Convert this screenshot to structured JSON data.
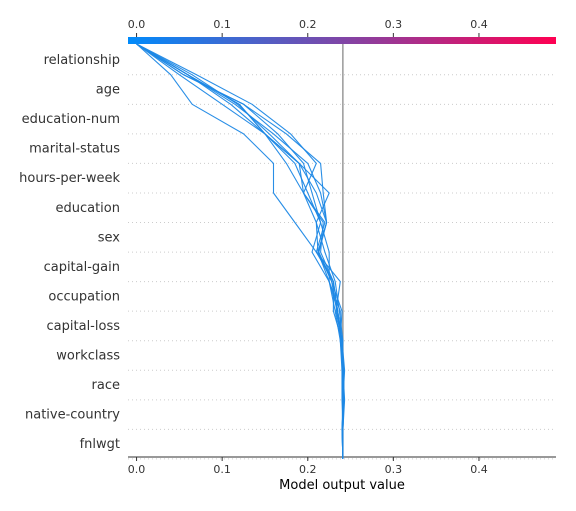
{
  "chart_data": {
    "type": "line",
    "title": "",
    "xlabel": "Model output value",
    "ylabel": "",
    "xlim": [
      -0.01,
      0.49
    ],
    "x_ticks": [
      "0.0",
      "0.1",
      "0.2",
      "0.3",
      "0.4"
    ],
    "x_tick_values": [
      0.0,
      0.1,
      0.2,
      0.3,
      0.4
    ],
    "base_value": 0.0,
    "expected_output": 0.241,
    "colorbar": {
      "from_color": "#008bfb",
      "to_color": "#ff0052"
    },
    "line_color": "#1e88e5",
    "grid": "dotted-horizontal",
    "features": [
      "relationship",
      "age",
      "education-num",
      "marital-status",
      "hours-per-week",
      "education",
      "sex",
      "capital-gain",
      "occupation",
      "capital-loss",
      "workclass",
      "race",
      "native-country",
      "fnlwgt"
    ],
    "series": [
      {
        "values": [
          0.055,
          0.125,
          0.165,
          0.195,
          0.205,
          0.215,
          0.205,
          0.225,
          0.232,
          0.238,
          0.24,
          0.24,
          0.241,
          0.241
        ]
      },
      {
        "values": [
          0.06,
          0.12,
          0.15,
          0.19,
          0.225,
          0.21,
          0.212,
          0.23,
          0.235,
          0.24,
          0.242,
          0.241,
          0.241,
          0.241
        ]
      },
      {
        "values": [
          0.04,
          0.065,
          0.125,
          0.16,
          0.16,
          0.185,
          0.21,
          0.238,
          0.233,
          0.24,
          0.243,
          0.241,
          0.24,
          0.241
        ]
      },
      {
        "values": [
          0.055,
          0.125,
          0.175,
          0.215,
          0.218,
          0.222,
          0.212,
          0.225,
          0.238,
          0.238,
          0.242,
          0.242,
          0.241,
          0.241
        ]
      },
      {
        "values": [
          0.06,
          0.12,
          0.15,
          0.185,
          0.2,
          0.215,
          0.225,
          0.225,
          0.235,
          0.24,
          0.241,
          0.243,
          0.241,
          0.241
        ]
      },
      {
        "values": [
          0.06,
          0.11,
          0.15,
          0.175,
          0.195,
          0.218,
          0.215,
          0.23,
          0.235,
          0.24,
          0.241,
          0.242,
          0.24,
          0.241
        ]
      },
      {
        "values": [
          0.065,
          0.118,
          0.155,
          0.19,
          0.21,
          0.222,
          0.212,
          0.228,
          0.24,
          0.238,
          0.242,
          0.242,
          0.241,
          0.241
        ]
      },
      {
        "values": [
          0.05,
          0.1,
          0.15,
          0.19,
          0.195,
          0.21,
          0.22,
          0.232,
          0.237,
          0.241,
          0.24,
          0.241,
          0.241,
          0.241
        ]
      },
      {
        "values": [
          0.07,
          0.135,
          0.18,
          0.21,
          0.195,
          0.22,
          0.21,
          0.23,
          0.23,
          0.24,
          0.24,
          0.242,
          0.24,
          0.241
        ]
      },
      {
        "values": [
          0.06,
          0.115,
          0.16,
          0.2,
          0.215,
          0.222,
          0.213,
          0.228,
          0.234,
          0.239,
          0.242,
          0.242,
          0.241,
          0.241
        ]
      }
    ]
  }
}
